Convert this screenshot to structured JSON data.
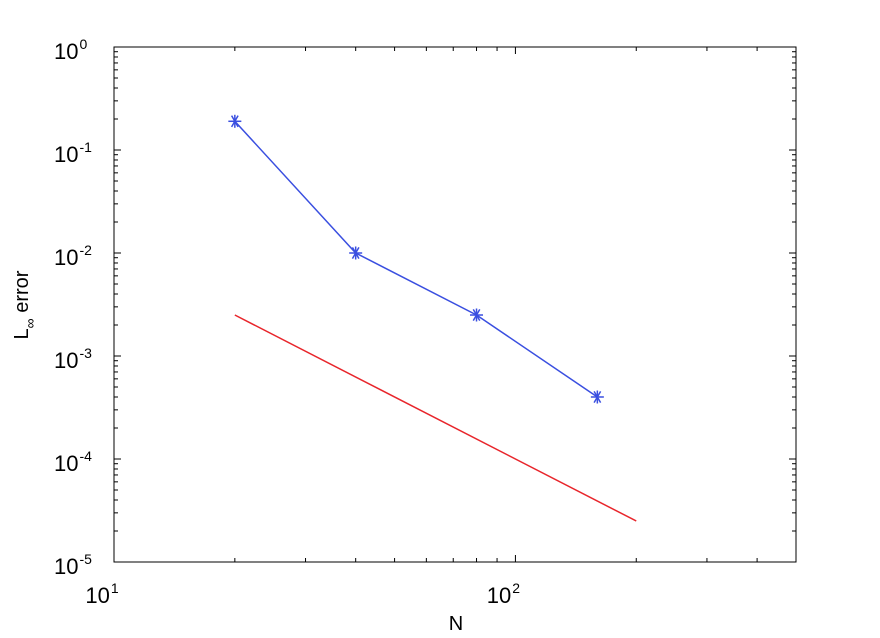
{
  "chart_data": {
    "type": "line",
    "title": "",
    "xlabel": "N",
    "ylabel": {
      "main": "L",
      "subscript": "∞",
      "rest": " error"
    },
    "xscale": "log",
    "yscale": "log",
    "xlim": [
      10,
      500
    ],
    "ylim": [
      1e-05,
      1
    ],
    "grid": false,
    "legend": "none",
    "x_ticks": [
      {
        "value": 10,
        "base": "10",
        "exp": "1"
      },
      {
        "value": 100,
        "base": "10",
        "exp": "2"
      }
    ],
    "y_ticks": [
      {
        "value": 1,
        "base": "10",
        "exp": "0"
      },
      {
        "value": 0.1,
        "base": "10",
        "exp": "-1"
      },
      {
        "value": 0.01,
        "base": "10",
        "exp": "-2"
      },
      {
        "value": 0.001,
        "base": "10",
        "exp": "-3"
      },
      {
        "value": 0.0001,
        "base": "10",
        "exp": "-4"
      },
      {
        "value": 1e-05,
        "base": "10",
        "exp": "-5"
      }
    ],
    "series": [
      {
        "color": "#3a4fe0",
        "marker": "asterisk",
        "x": [
          20,
          40,
          80,
          160
        ],
        "y": [
          0.19,
          0.01,
          0.0025,
          0.0004
        ]
      },
      {
        "color": "#e8252b",
        "marker": "none",
        "x": [
          20,
          200
        ],
        "y": [
          0.0025,
          2.5e-05
        ]
      }
    ]
  }
}
